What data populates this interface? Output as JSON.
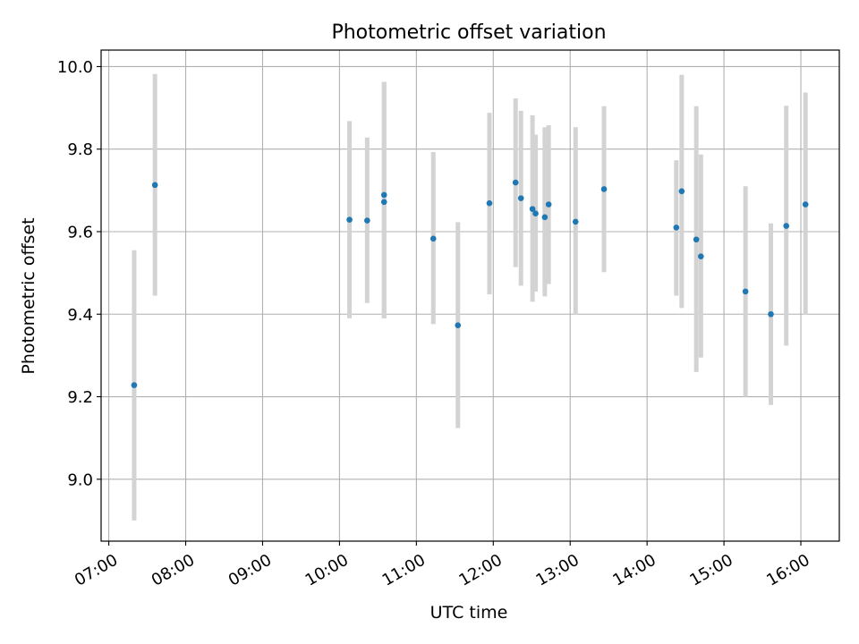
{
  "chart_data": {
    "type": "scatter",
    "title": "Photometric offset variation",
    "xlabel": "UTC time",
    "ylabel": "Photometric offset",
    "x_unit": "hours UTC",
    "xlim": [
      6.9,
      16.5
    ],
    "ylim": [
      8.85,
      10.04
    ],
    "grid": true,
    "colors": {
      "marker": "#1f77b4",
      "errorbar": "#d3d3d3",
      "grid": "#b0b0b0"
    },
    "x_ticks": [
      {
        "value": 7,
        "label": "07:00"
      },
      {
        "value": 8,
        "label": "08:00"
      },
      {
        "value": 9,
        "label": "09:00"
      },
      {
        "value": 10,
        "label": "10:00"
      },
      {
        "value": 11,
        "label": "11:00"
      },
      {
        "value": 12,
        "label": "12:00"
      },
      {
        "value": 13,
        "label": "13:00"
      },
      {
        "value": 14,
        "label": "14:00"
      },
      {
        "value": 15,
        "label": "15:00"
      },
      {
        "value": 16,
        "label": "16:00"
      }
    ],
    "y_ticks": [
      {
        "value": 9.0,
        "label": "9.0"
      },
      {
        "value": 9.2,
        "label": "9.2"
      },
      {
        "value": 9.4,
        "label": "9.4"
      },
      {
        "value": 9.6,
        "label": "9.6"
      },
      {
        "value": 9.8,
        "label": "9.8"
      },
      {
        "value": 10.0,
        "label": "10.0"
      }
    ],
    "points": [
      {
        "t": 7.33,
        "y": 9.228,
        "lo": 8.9,
        "hi": 9.555
      },
      {
        "t": 7.6,
        "y": 9.713,
        "lo": 9.445,
        "hi": 9.982
      },
      {
        "t": 10.13,
        "y": 9.629,
        "lo": 9.39,
        "hi": 9.868
      },
      {
        "t": 10.36,
        "y": 9.627,
        "lo": 9.427,
        "hi": 9.828
      },
      {
        "t": 10.58,
        "y": 9.689,
        "lo": 9.39,
        "hi": 9.963
      },
      {
        "t": 10.58,
        "y": 9.672,
        "lo": 9.39,
        "hi": 9.963
      },
      {
        "t": 11.22,
        "y": 9.583,
        "lo": 9.376,
        "hi": 9.793
      },
      {
        "t": 11.54,
        "y": 9.373,
        "lo": 9.124,
        "hi": 9.623
      },
      {
        "t": 11.95,
        "y": 9.669,
        "lo": 9.448,
        "hi": 9.888
      },
      {
        "t": 12.29,
        "y": 9.719,
        "lo": 9.514,
        "hi": 9.923
      },
      {
        "t": 12.36,
        "y": 9.681,
        "lo": 9.469,
        "hi": 9.893
      },
      {
        "t": 12.51,
        "y": 9.655,
        "lo": 9.43,
        "hi": 9.882
      },
      {
        "t": 12.55,
        "y": 9.644,
        "lo": 9.455,
        "hi": 9.835
      },
      {
        "t": 12.67,
        "y": 9.635,
        "lo": 9.443,
        "hi": 9.853
      },
      {
        "t": 12.72,
        "y": 9.666,
        "lo": 9.473,
        "hi": 9.858
      },
      {
        "t": 13.07,
        "y": 9.624,
        "lo": 9.398,
        "hi": 9.853
      },
      {
        "t": 13.44,
        "y": 9.703,
        "lo": 9.502,
        "hi": 9.904
      },
      {
        "t": 14.38,
        "y": 9.61,
        "lo": 9.445,
        "hi": 9.773
      },
      {
        "t": 14.45,
        "y": 9.698,
        "lo": 9.415,
        "hi": 9.98
      },
      {
        "t": 14.64,
        "y": 9.581,
        "lo": 9.26,
        "hi": 9.904
      },
      {
        "t": 14.7,
        "y": 9.54,
        "lo": 9.295,
        "hi": 9.787
      },
      {
        "t": 15.28,
        "y": 9.455,
        "lo": 9.2,
        "hi": 9.71
      },
      {
        "t": 15.61,
        "y": 9.4,
        "lo": 9.18,
        "hi": 9.62
      },
      {
        "t": 15.81,
        "y": 9.614,
        "lo": 9.324,
        "hi": 9.905
      },
      {
        "t": 16.06,
        "y": 9.666,
        "lo": 9.398,
        "hi": 9.937
      }
    ]
  }
}
